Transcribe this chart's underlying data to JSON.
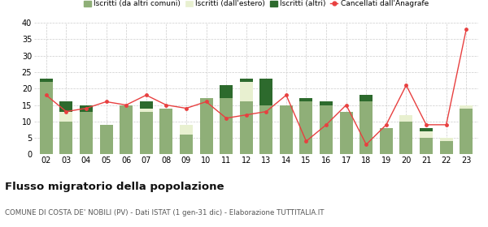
{
  "years": [
    "02",
    "03",
    "04",
    "05",
    "06",
    "07",
    "08",
    "09",
    "10",
    "11",
    "12",
    "13",
    "14",
    "15",
    "16",
    "17",
    "18",
    "19",
    "20",
    "21",
    "22",
    "23"
  ],
  "iscritti_comuni": [
    22,
    10,
    13,
    9,
    15,
    13,
    14,
    6,
    17,
    17,
    16,
    15,
    15,
    16,
    15,
    13,
    16,
    8,
    10,
    5,
    4,
    14
  ],
  "iscritti_estero": [
    0,
    3,
    0,
    0,
    0,
    1,
    0,
    3,
    0,
    0,
    6,
    0,
    0,
    0,
    0,
    0,
    0,
    0,
    2,
    2,
    1,
    1
  ],
  "iscritti_altri": [
    1,
    3,
    2,
    0,
    0,
    2,
    0,
    0,
    0,
    4,
    1,
    8,
    0,
    1,
    1,
    0,
    2,
    0,
    0,
    1,
    0,
    0
  ],
  "cancellati": [
    18,
    13,
    14,
    16,
    15,
    18,
    15,
    14,
    16,
    11,
    12,
    13,
    18,
    4,
    9,
    15,
    3,
    9,
    21,
    9,
    9,
    38
  ],
  "color_comuni": "#8faf78",
  "color_estero": "#e8f0d0",
  "color_altri": "#2d6a2d",
  "color_cancellati": "#e84040",
  "title": "Flusso migratorio della popolazione",
  "subtitle": "COMUNE DI COSTA DE' NOBILI (PV) - Dati ISTAT (1 gen-31 dic) - Elaborazione TUTTITALIA.IT",
  "ylim": [
    0,
    40
  ],
  "yticks": [
    0,
    5,
    10,
    15,
    20,
    25,
    30,
    35,
    40
  ],
  "legend_labels": [
    "Iscritti (da altri comuni)",
    "Iscritti (dall'estero)",
    "Iscritti (altri)",
    "Cancellati dall'Anagrafe"
  ],
  "bg_color": "#ffffff",
  "grid_color": "#cccccc"
}
